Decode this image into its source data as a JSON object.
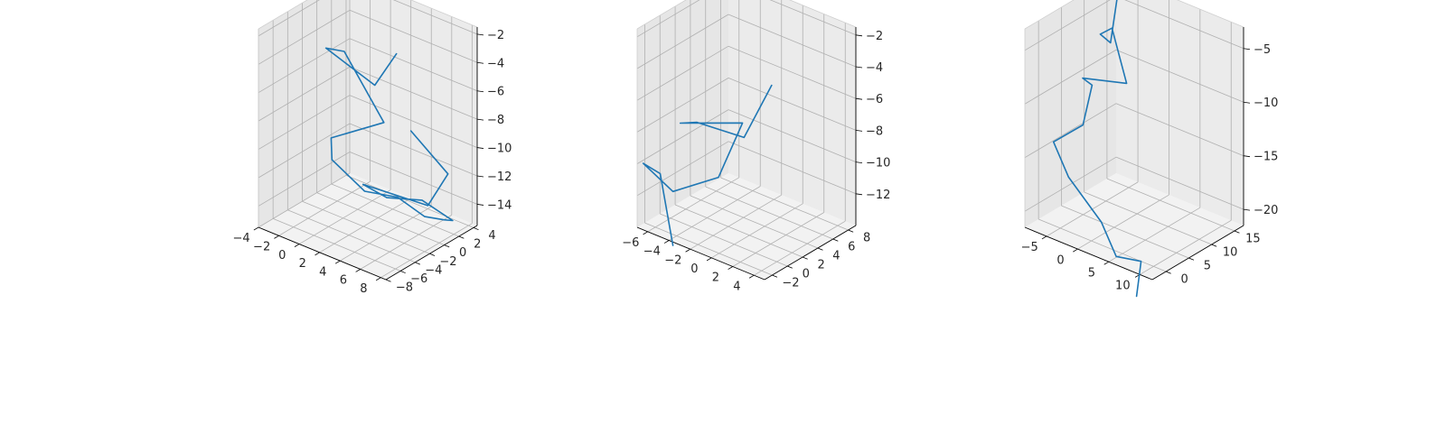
{
  "figure": {
    "background": "#ffffff",
    "pane_colors": {
      "floor": "#f2f2f2",
      "back_wall": "#ebebeb",
      "left_wall": "#e6e6e6"
    },
    "grid_color": "#b0b0b0",
    "axis_color": "#000000",
    "series_color": "#1f77b4"
  },
  "chart_data": [
    {
      "type": "line3d",
      "grid": true,
      "series": [
        {
          "points": [
            [
              5.6,
              -2.5,
              -2.1
            ],
            [
              3.4,
              -2.4,
              -5.0
            ],
            [
              -1.4,
              -2.4,
              -3.8
            ],
            [
              0.4,
              -2.4,
              -3.5
            ],
            [
              3.0,
              -0.6,
              -8.3
            ],
            [
              -1.6,
              -1.4,
              -10.5
            ],
            [
              -0.8,
              -2.4,
              -11.5
            ],
            [
              1.4,
              -1.0,
              -13.5
            ],
            [
              3.2,
              1.0,
              -14.0
            ],
            [
              5.0,
              2.2,
              -15.2
            ],
            [
              5.6,
              4.0,
              -15.8
            ],
            [
              6.6,
              3.8,
              -15.5
            ],
            [
              5.6,
              1.0,
              -13.5
            ],
            [
              4.0,
              -1.6,
              -13.0
            ],
            [
              1.6,
              -1.5,
              -12.8
            ],
            [
              6.6,
              0.4,
              -13.4
            ],
            [
              8.0,
              1.2,
              -11.0
            ],
            [
              5.8,
              -0.8,
              -8.0
            ]
          ]
        }
      ],
      "xlim": [
        -4,
        8.5
      ],
      "ylim": [
        -8,
        4.5
      ],
      "zlim": [
        -15.5,
        -1.5
      ],
      "xticks": [
        -4,
        -2,
        0,
        2,
        4,
        6,
        8
      ],
      "yticks": [
        -8,
        -6,
        -4,
        -2,
        0,
        2,
        4
      ],
      "zticks": [
        -2,
        -4,
        -6,
        -8,
        -10,
        -12,
        -14
      ],
      "xticklabels": [
        "−4",
        "−2",
        "0",
        "2",
        "4",
        "6",
        "8"
      ],
      "yticklabels": [
        "−8",
        "−6",
        "−4",
        "−2",
        "0",
        "2",
        "4"
      ],
      "zticklabels": [
        "−2",
        "−4",
        "−6",
        "−8",
        "−10",
        "−12",
        "−14"
      ]
    },
    {
      "type": "line3d",
      "grid": true,
      "series": [
        {
          "points": [
            [
              2.8,
              1.0,
              -3.5
            ],
            [
              0.2,
              1.0,
              -7.5
            ],
            [
              -2.8,
              -1.0,
              -6.8
            ],
            [
              -3.8,
              -1.8,
              -6.9
            ],
            [
              -0.8,
              2.2,
              -7.2
            ],
            [
              -1.2,
              -0.4,
              -10.0
            ],
            [
              -4.2,
              -2.2,
              -11.2
            ],
            [
              -7.0,
              -2.2,
              -10.2
            ],
            [
              -5.4,
              -2.2,
              -10.4
            ],
            [
              -4.2,
              -2.2,
              -14.6
            ]
          ]
        }
      ],
      "xlim": [
        -7,
        5
      ],
      "ylim": [
        -3,
        9
      ],
      "zlim": [
        -14,
        -1.5
      ],
      "xticks": [
        -6,
        -4,
        -2,
        0,
        2,
        4
      ],
      "yticks": [
        -2,
        0,
        2,
        4,
        6,
        8
      ],
      "zticks": [
        -2,
        -4,
        -6,
        -8,
        -10,
        -12
      ],
      "xticklabels": [
        "−6",
        "−4",
        "−2",
        "0",
        "2",
        "4"
      ],
      "yticklabels": [
        "−2",
        "0",
        "2",
        "4",
        "6",
        "8"
      ],
      "zticklabels": [
        "−2",
        "−4",
        "−6",
        "−8",
        "−10",
        "−12"
      ]
    },
    {
      "type": "line3d",
      "grid": true,
      "series": [
        {
          "points": [
            [
              -5.5,
              13.5,
              -2.5
            ],
            [
              -5.0,
              11.0,
              -7.0
            ],
            [
              -6.5,
              10.8,
              -6.5
            ],
            [
              -5.5,
              12.0,
              -6.0
            ],
            [
              -3.0,
              11.8,
              -10.5
            ],
            [
              -8.0,
              9.0,
              -10.5
            ],
            [
              -6.5,
              9.0,
              -10.8
            ],
            [
              -6.5,
              7.0,
              -14.0
            ],
            [
              -8.3,
              3.0,
              -15.0
            ],
            [
              -5.5,
              2.5,
              -17.5
            ],
            [
              0.5,
              1.5,
              -20.0
            ],
            [
              4.0,
              0.0,
              -22.0
            ],
            [
              8.0,
              0.0,
              -21.5
            ],
            [
              8.0,
              -1.0,
              -24.5
            ]
          ]
        }
      ],
      "xlim": [
        -8.5,
        12
      ],
      "ylim": [
        -3,
        17
      ],
      "zlim": [
        -21.5,
        -3
      ],
      "xticks": [
        -5,
        0,
        5,
        10
      ],
      "yticks": [
        0,
        5,
        10,
        15
      ],
      "zticks": [
        -5,
        -10,
        -15,
        -20
      ],
      "xticklabels": [
        "−5",
        "0",
        "5",
        "10"
      ],
      "yticklabels": [
        "0",
        "5",
        "10",
        "15"
      ],
      "zticklabels": [
        "−5",
        "−10",
        "−15",
        "−20"
      ]
    }
  ]
}
